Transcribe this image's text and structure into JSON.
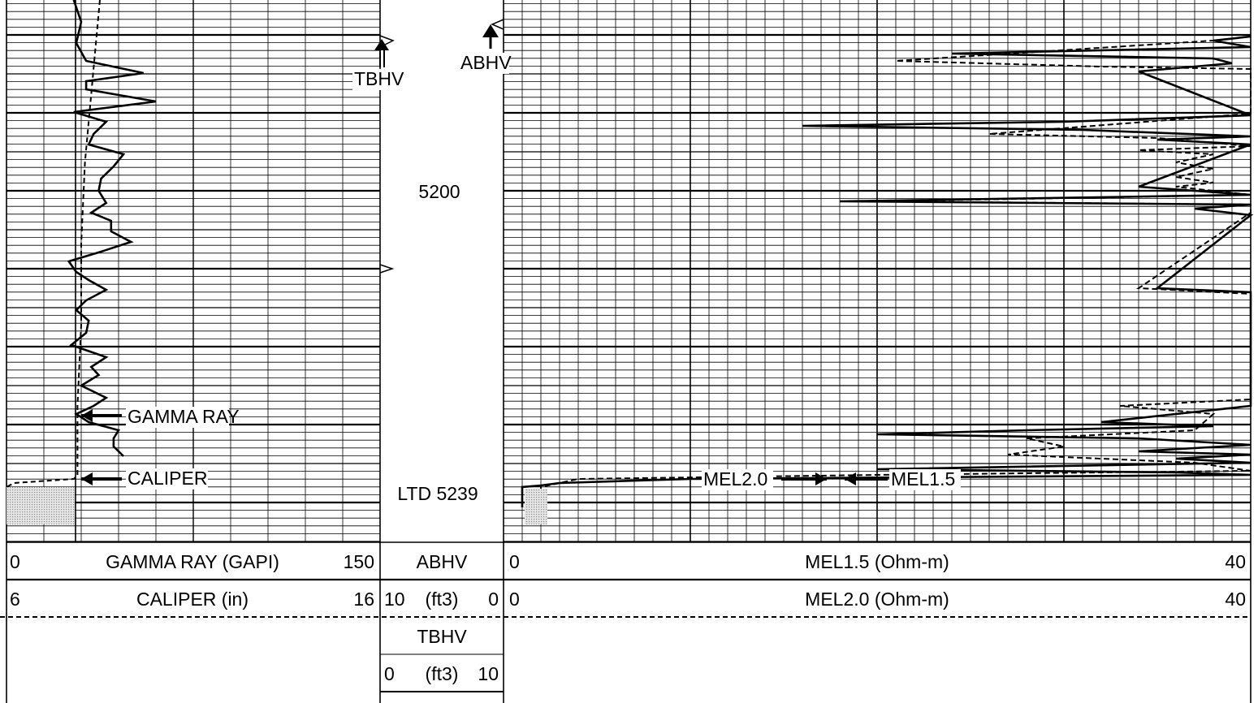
{
  "chart_data": {
    "type": "line",
    "depth_axis": {
      "label": "5200",
      "ltd_label": "LTD 5239"
    },
    "tracks": [
      {
        "name": "track1",
        "curves": [
          {
            "name": "GAMMA RAY (GAPI)",
            "min": "0",
            "max": "150",
            "style": "solid",
            "points": [
              [
                0,
                27
              ],
              [
                27,
                30
              ],
              [
                53,
                28
              ],
              [
                75,
                32
              ],
              [
                90,
                55
              ],
              [
                100,
                32
              ],
              [
                110,
                32
              ],
              [
                125,
                60
              ],
              [
                138,
                27
              ],
              [
                150,
                40
              ],
              [
                165,
                35
              ],
              [
                178,
                33
              ],
              [
                190,
                47
              ],
              [
                205,
                43
              ],
              [
                220,
                38
              ],
              [
                235,
                37
              ],
              [
                250,
                40
              ],
              [
                262,
                34
              ],
              [
                272,
                42
              ],
              [
                285,
                42
              ],
              [
                298,
                50
              ],
              [
                310,
                38
              ],
              [
                322,
                25
              ],
              [
                335,
                28
              ],
              [
                345,
                33
              ],
              [
                357,
                40
              ],
              [
                370,
                32
              ],
              [
                382,
                28
              ],
              [
                395,
                33
              ],
              [
                410,
                32
              ],
              [
                425,
                26
              ],
              [
                440,
                40
              ],
              [
                452,
                34
              ],
              [
                462,
                37
              ],
              [
                475,
                30
              ],
              [
                490,
                40
              ],
              [
                500,
                35
              ],
              [
                510,
                28
              ],
              [
                520,
                33
              ],
              [
                530,
                45
              ],
              [
                540,
                43
              ],
              [
                550,
                43
              ],
              [
                562,
                47
              ]
            ]
          },
          {
            "name": "CALIPER (in)",
            "min": "6",
            "max": "16",
            "style": "dashed",
            "points": [
              [
                0,
                8.5
              ],
              [
                100,
                8.3
              ],
              [
                200,
                8.1
              ],
              [
                300,
                8.0
              ],
              [
                400,
                8.0
              ],
              [
                500,
                7.9
              ],
              [
                585,
                7.9
              ],
              [
                590,
                7.8
              ],
              [
                595,
                6.2
              ],
              [
                600,
                6.0
              ]
            ]
          }
        ],
        "annotations": [
          "GAMMA RAY",
          "CALIPER"
        ]
      },
      {
        "name": "depth",
        "curves": [
          {
            "name": "ABHV",
            "unit": "(ft3)",
            "min": "10",
            "max": "0"
          },
          {
            "name": "TBHV",
            "unit": "(ft3)",
            "min": "0",
            "max": "10"
          }
        ],
        "annotations": [
          "TBHV",
          "ABHV"
        ]
      },
      {
        "name": "track2",
        "curves": [
          {
            "name": "MEL1.5 (Ohm-m)",
            "min": "0",
            "max": "40",
            "style": "solid",
            "points": [
              [
                45,
                40
              ],
              [
                50,
                38
              ],
              [
                58,
                40
              ],
              [
                66,
                24
              ],
              [
                72,
                38
              ],
              [
                78,
                39
              ],
              [
                88,
                34
              ],
              [
                142,
                40
              ],
              [
                150,
                30
              ],
              [
                155,
                16
              ],
              [
                160,
                31
              ],
              [
                168,
                40
              ],
              [
                172,
                35
              ],
              [
                178,
                40
              ],
              [
                230,
                34
              ],
              [
                240,
                40
              ],
              [
                248,
                18
              ],
              [
                252,
                40
              ],
              [
                257,
                37
              ],
              [
                265,
                40
              ],
              [
                355,
                35
              ],
              [
                360,
                40
              ],
              [
                500,
                40
              ],
              [
                520,
                32
              ],
              [
                525,
                38
              ],
              [
                530,
                28
              ],
              [
                535,
                20
              ],
              [
                540,
                34
              ],
              [
                548,
                40
              ],
              [
                556,
                34
              ],
              [
                560,
                40
              ],
              [
                565,
                36
              ],
              [
                570,
                40
              ],
              [
                578,
                20
              ],
              [
                582,
                36
              ],
              [
                585,
                40
              ],
              [
                590,
                10
              ],
              [
                595,
                3
              ],
              [
                598,
                2
              ],
              [
                600,
                1
              ],
              [
                615,
                1
              ],
              [
                625,
                1
              ]
            ]
          },
          {
            "name": "MEL2.0 (Ohm-m)",
            "min": "0",
            "max": "40",
            "style": "dashed",
            "points": [
              [
                45,
                40
              ],
              [
                50,
                38
              ],
              [
                75,
                21
              ],
              [
                82,
                32
              ],
              [
                85,
                40
              ],
              [
                140,
                40
              ],
              [
                165,
                26
              ],
              [
                170,
                35
              ],
              [
                180,
                40
              ],
              [
                185,
                34
              ],
              [
                190,
                38
              ],
              [
                200,
                36
              ],
              [
                208,
                38
              ],
              [
                218,
                36
              ],
              [
                225,
                38
              ],
              [
                230,
                36
              ],
              [
                240,
                40
              ],
              [
                248,
                20
              ],
              [
                252,
                40
              ],
              [
                262,
                40
              ],
              [
                355,
                34
              ],
              [
                362,
                40
              ],
              [
                492,
                40
              ],
              [
                500,
                33
              ],
              [
                510,
                38
              ],
              [
                530,
                37
              ],
              [
                540,
                28
              ],
              [
                550,
                30
              ],
              [
                560,
                27
              ],
              [
                570,
                37
              ],
              [
                580,
                40
              ],
              [
                585,
                20
              ],
              [
                590,
                4
              ],
              [
                600,
                2
              ],
              [
                615,
                2
              ],
              [
                645,
                2
              ]
            ]
          }
        ],
        "annotations": [
          "MEL2.0",
          "MEL1.5"
        ]
      }
    ]
  },
  "header": {
    "t1_row1": {
      "min": "0",
      "name": "GAMMA RAY (GAPI)",
      "max": "150"
    },
    "t1_row2": {
      "min": "6",
      "name": "CALIPER (in)",
      "max": "16"
    },
    "depth_row1": {
      "name": "ABHV"
    },
    "depth_row2": {
      "min": "10",
      "unit": "(ft3)",
      "max": "0"
    },
    "depth_row3": {
      "name": "TBHV"
    },
    "depth_row4": {
      "min": "0",
      "unit": "(ft3)",
      "max": "10"
    },
    "t2_row1": {
      "min": "0",
      "name": "MEL1.5 (Ohm-m)",
      "max": "40"
    },
    "t2_row2": {
      "min": "0",
      "name": "MEL2.0 (Ohm-m)",
      "max": "40"
    }
  },
  "colors": {
    "ink": "#000000",
    "grid": "#000000",
    "shade": "#bdbdbd"
  }
}
